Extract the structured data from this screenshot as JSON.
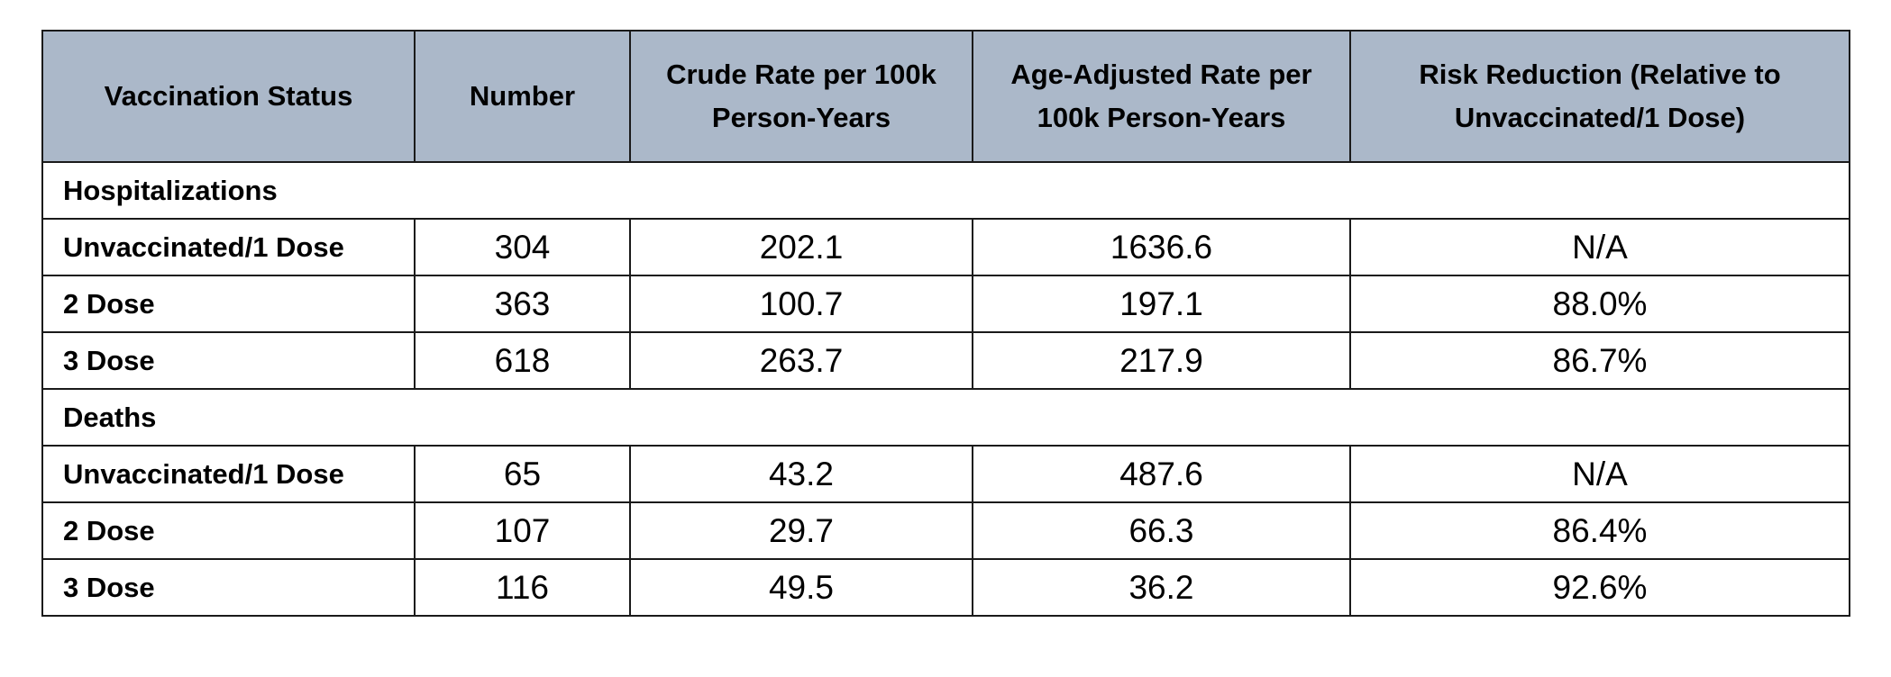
{
  "table": {
    "headers": [
      "Vaccination Status",
      "Number",
      "Crude Rate per 100k Person-Years",
      "Age-Adjusted Rate per 100k Person-Years",
      "Risk Reduction (Relative to Unvaccinated/1 Dose)"
    ],
    "sections": [
      {
        "title": "Hospitalizations",
        "rows": [
          {
            "status": "Unvaccinated/1 Dose",
            "number": "304",
            "crude": "202.1",
            "adjusted": "1636.6",
            "reduction": "N/A"
          },
          {
            "status": "2 Dose",
            "number": "363",
            "crude": "100.7",
            "adjusted": "197.1",
            "reduction": "88.0%"
          },
          {
            "status": "3 Dose",
            "number": "618",
            "crude": "263.7",
            "adjusted": "217.9",
            "reduction": "86.7%"
          }
        ]
      },
      {
        "title": "Deaths",
        "rows": [
          {
            "status": "Unvaccinated/1 Dose",
            "number": "65",
            "crude": "43.2",
            "adjusted": "487.6",
            "reduction": "N/A"
          },
          {
            "status": "2 Dose",
            "number": "107",
            "crude": "29.7",
            "adjusted": "66.3",
            "reduction": "86.4%"
          },
          {
            "status": "3 Dose",
            "number": "116",
            "crude": "49.5",
            "adjusted": "36.2",
            "reduction": "92.6%"
          }
        ]
      }
    ]
  }
}
